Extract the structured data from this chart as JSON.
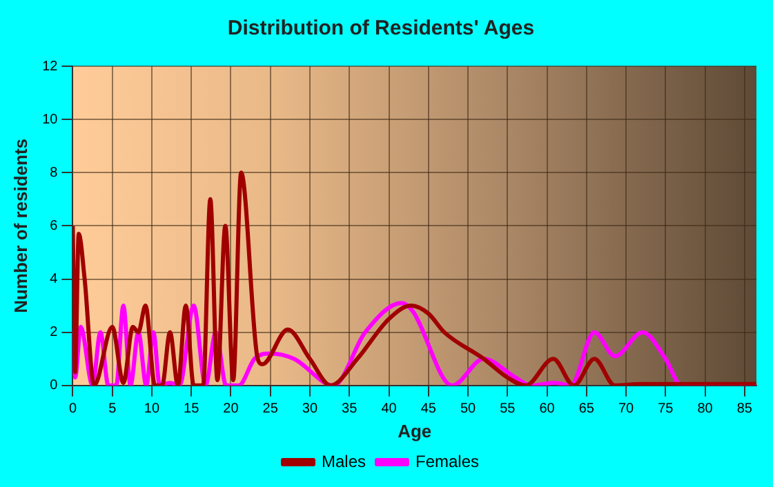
{
  "chart_data": {
    "type": "line",
    "title": "Distribution of Residents' Ages",
    "xlabel": "Age",
    "ylabel": "Number of residents",
    "xlim": [
      0,
      86.5
    ],
    "xticks": [
      0,
      5,
      10,
      15,
      20,
      25,
      30,
      35,
      40,
      45,
      50,
      55,
      60,
      65,
      70,
      75,
      80,
      85
    ],
    "ylim": [
      0,
      12
    ],
    "yticks": [
      0,
      2,
      4,
      6,
      8,
      10,
      12
    ],
    "grid": true,
    "legend": "bottom",
    "marker": "none",
    "line_style": "solid",
    "series": [
      {
        "name": "Males",
        "color": "#a00000",
        "x": [
          0,
          0.3,
          0.75,
          1.5,
          2.7,
          5,
          6.4,
          7.6,
          8.3,
          9.2,
          10.4,
          11.3,
          12.3,
          13.3,
          14.3,
          15.3,
          16.5,
          17.4,
          18.3,
          19.3,
          20.3,
          21.3,
          23.4,
          24,
          27.2,
          30,
          32.6,
          36,
          40,
          42.8,
          45,
          47,
          52,
          55,
          57.3,
          60.8,
          63.4,
          66,
          68.6,
          72,
          80,
          86.5
        ],
        "values": [
          6,
          0.5,
          5.7,
          4,
          0,
          2.2,
          0.1,
          2.2,
          2,
          3,
          0,
          0,
          2,
          0,
          3,
          0,
          0,
          7,
          0.2,
          6,
          0.2,
          8,
          1,
          0.8,
          2.1,
          1,
          0,
          1,
          2.5,
          3,
          2.7,
          2,
          1,
          0.3,
          0,
          1,
          0,
          1,
          0,
          0.05,
          0.05,
          0.05
        ]
      },
      {
        "name": "Females",
        "color": "#ff00ff",
        "x": [
          0,
          0.3,
          1,
          2.5,
          3.5,
          4.5,
          5.5,
          6.4,
          7.3,
          8.3,
          9.3,
          10.2,
          11,
          12.3,
          13.5,
          15.3,
          16.8,
          18.1,
          19.4,
          21,
          23,
          25,
          28,
          33,
          37,
          41.6,
          43,
          48,
          52,
          56,
          58,
          61,
          63,
          66,
          68.6,
          72.1,
          75,
          77,
          86.5
        ],
        "values": [
          2.1,
          0.3,
          2.2,
          0,
          2,
          0,
          0,
          3,
          0,
          2,
          0,
          2,
          0,
          0.1,
          0,
          3,
          0,
          2,
          0,
          0,
          1,
          1.2,
          1,
          0,
          2,
          3.1,
          2.8,
          0,
          1,
          0.3,
          0,
          0.1,
          0,
          2,
          1.1,
          2,
          1,
          0,
          0
        ]
      }
    ]
  }
}
